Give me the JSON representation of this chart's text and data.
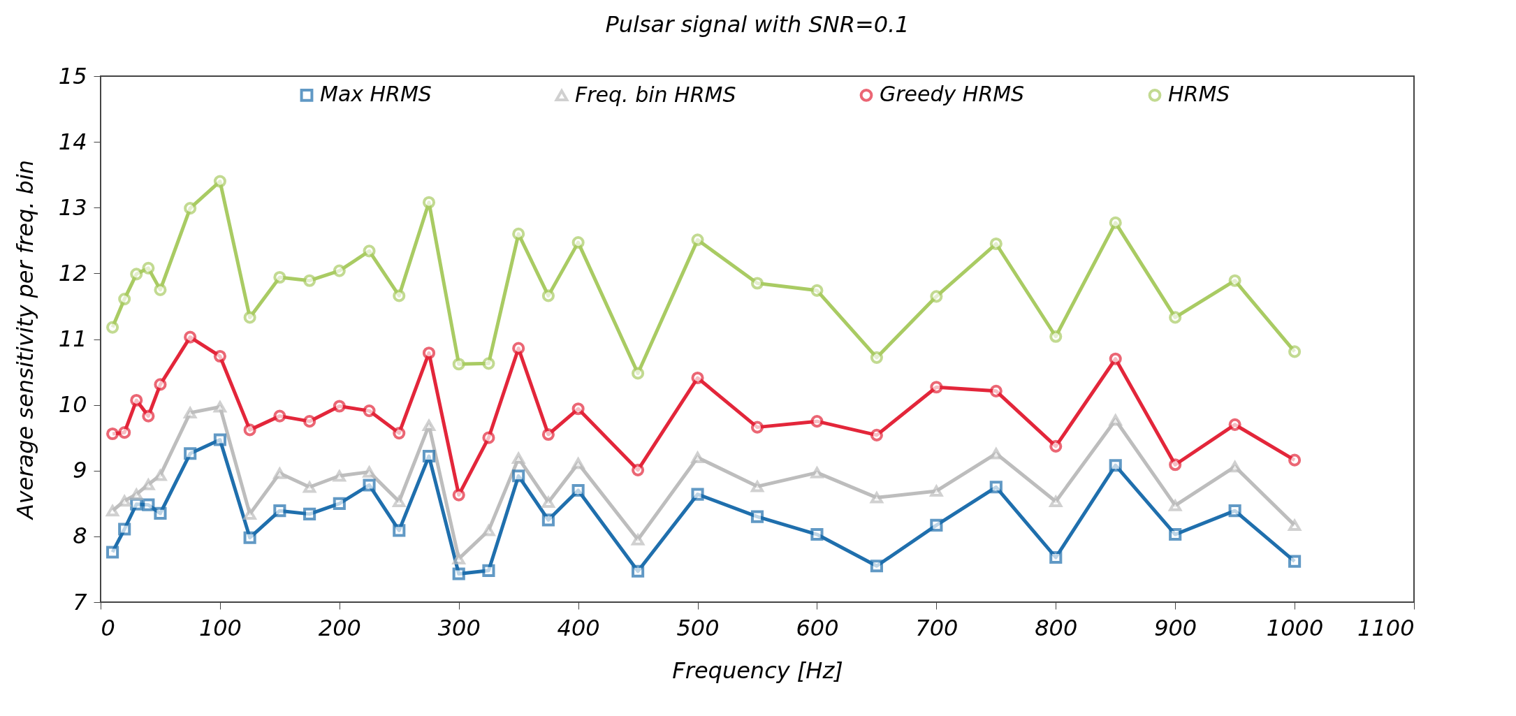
{
  "chart_data": {
    "type": "line",
    "title": "Pulsar signal with SNR=0.1",
    "xlabel": "Frequency [Hz]",
    "ylabel": "Average sensitivity per freq. bin",
    "x": [
      10,
      20,
      30,
      40,
      50,
      75,
      100,
      125,
      150,
      175,
      200,
      225,
      250,
      275,
      300,
      325,
      350,
      375,
      400,
      450,
      500,
      550,
      600,
      650,
      700,
      750,
      800,
      850,
      900,
      950,
      1000
    ],
    "series": [
      {
        "name": "Max HRMS",
        "color": "#1f6fad",
        "marker": "square",
        "values": [
          7.76,
          8.11,
          8.49,
          8.48,
          8.35,
          9.26,
          9.47,
          7.98,
          8.39,
          8.34,
          8.5,
          8.78,
          8.09,
          9.22,
          7.43,
          7.48,
          8.92,
          8.25,
          8.7,
          7.47,
          8.64,
          8.3,
          8.03,
          7.55,
          8.17,
          8.75,
          7.68,
          9.08,
          8.03,
          8.39,
          7.62
        ]
      },
      {
        "name": "Freq. bin HRMS",
        "color": "#bdbdbd",
        "marker": "triangle",
        "values": [
          8.39,
          8.54,
          8.64,
          8.79,
          8.93,
          9.88,
          9.97,
          8.34,
          8.96,
          8.75,
          8.92,
          8.98,
          8.53,
          9.69,
          7.66,
          8.09,
          9.19,
          8.52,
          9.11,
          7.95,
          9.2,
          8.76,
          8.97,
          8.59,
          8.69,
          9.26,
          8.53,
          9.77,
          8.47,
          9.06,
          8.17
        ]
      },
      {
        "name": "Greedy HRMS",
        "color": "#e3263a",
        "marker": "circle",
        "values": [
          9.56,
          9.58,
          10.07,
          9.83,
          10.31,
          11.03,
          10.74,
          9.62,
          9.83,
          9.75,
          9.98,
          9.91,
          9.57,
          10.79,
          8.63,
          9.5,
          10.86,
          9.55,
          9.94,
          9.01,
          10.41,
          9.66,
          9.75,
          9.54,
          10.27,
          10.21,
          9.37,
          10.7,
          9.09,
          9.7,
          9.16
        ]
      },
      {
        "name": "HRMS",
        "color": "#a9cb63",
        "marker": "circle",
        "values": [
          11.18,
          11.61,
          11.99,
          12.08,
          11.75,
          12.99,
          13.4,
          11.33,
          11.94,
          11.89,
          12.04,
          12.34,
          11.66,
          13.08,
          10.62,
          10.63,
          12.6,
          11.66,
          12.47,
          10.48,
          12.51,
          11.85,
          11.74,
          10.72,
          11.65,
          12.45,
          11.04,
          12.77,
          11.33,
          11.89,
          10.81
        ]
      }
    ],
    "xlim": [
      0,
      1100
    ],
    "xticks": [
      0,
      100,
      200,
      300,
      400,
      500,
      600,
      700,
      800,
      900,
      1000,
      1100
    ],
    "ylim": [
      7,
      15
    ],
    "yticks": [
      7,
      8,
      9,
      10,
      11,
      12,
      13,
      14,
      15
    ],
    "legend": "top",
    "line_style": "solid"
  }
}
